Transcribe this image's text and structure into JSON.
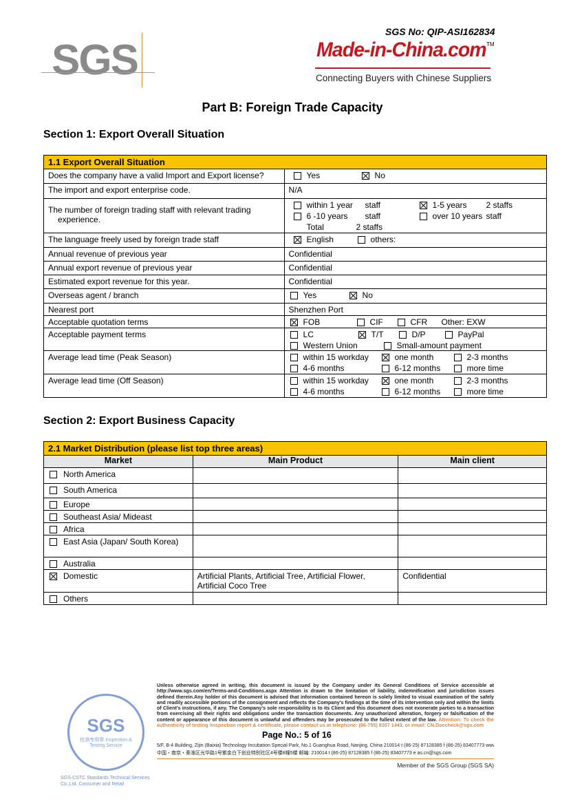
{
  "header": {
    "sgs_logo": "SGS",
    "sgs_no": "SGS No: QIP-ASI162834",
    "mic_logo": "Made-in-China.com",
    "mic_tm": "TM",
    "tagline": "Connecting Buyers with Chinese Suppliers"
  },
  "title": "Part B: Foreign Trade Capacity",
  "section1": {
    "title": "Section 1: Export Overall Situation",
    "table_title": "1.1 Export Overall Situation",
    "rows": [
      {
        "label": "Does the company have a valid Import and Export license?",
        "opts": [
          {
            "t": "Yes",
            "c": false
          },
          {
            "t": "No",
            "c": true
          }
        ]
      },
      {
        "label": "The import and export enterprise code.",
        "value": "N/A"
      },
      {
        "label": "The number of foreign trading staff with relevant trading experience.",
        "opts": [
          {
            "t": "within 1 year",
            "s": "staff",
            "c": false
          },
          {
            "t": "1-5 years",
            "s": "2 staffs",
            "c": true
          },
          {
            "t": "6 -10 years",
            "s": "staff",
            "c": false
          },
          {
            "t": "over 10 years",
            "s": "staff",
            "c": false
          }
        ],
        "total_label": "Total",
        "total": "2 staffs"
      },
      {
        "label": "The language freely used by foreign trade staff",
        "opts": [
          {
            "t": "English",
            "c": true
          },
          {
            "t": "others:",
            "c": false
          }
        ]
      },
      {
        "label": "Annual revenue of previous year",
        "value": "Confidential"
      },
      {
        "label": "Annual export revenue of previous year",
        "value": "Confidential"
      },
      {
        "label": "Estimated export revenue for this year.",
        "value": "Confidential"
      },
      {
        "label": "Overseas agent / branch",
        "opts": [
          {
            "t": "Yes",
            "c": false
          },
          {
            "t": "No",
            "c": true
          }
        ]
      },
      {
        "label": "Nearest port",
        "value": "Shenzhen Port"
      },
      {
        "label": "Acceptable quotation terms",
        "opts": [
          {
            "t": "FOB",
            "c": true
          },
          {
            "t": "CIF",
            "c": false
          },
          {
            "t": "CFR",
            "c": false
          }
        ],
        "other": "Other: EXW"
      },
      {
        "label": "Acceptable payment terms",
        "opts": [
          {
            "t": "LC",
            "c": false
          },
          {
            "t": "T/T",
            "c": true
          },
          {
            "t": "D/P",
            "c": false
          },
          {
            "t": "PayPal",
            "c": false
          },
          {
            "t": "Western Union",
            "c": false
          },
          {
            "t": "Small-amount payment",
            "c": false
          }
        ]
      },
      {
        "label": "Average lead time (Peak Season)",
        "opts": [
          {
            "t": "within 15 workday",
            "c": false
          },
          {
            "t": "one month",
            "c": true
          },
          {
            "t": "2-3 months",
            "c": false
          },
          {
            "t": "4-6 months",
            "c": false
          },
          {
            "t": "6-12 months",
            "c": false
          },
          {
            "t": "more time",
            "c": false
          }
        ]
      },
      {
        "label": "Average lead time (Off Season)",
        "opts": [
          {
            "t": "within 15 workday",
            "c": false
          },
          {
            "t": "one month",
            "c": true
          },
          {
            "t": "2-3 months",
            "c": false
          },
          {
            "t": "4-6 months",
            "c": false
          },
          {
            "t": "6-12 months",
            "c": false
          },
          {
            "t": "more time",
            "c": false
          }
        ]
      }
    ]
  },
  "section2": {
    "title": "Section 2: Export Business Capacity",
    "table_title": "2.1 Market Distribution (please list top three areas)",
    "columns": [
      "Market",
      "Main Product",
      "Main client"
    ],
    "rows": [
      {
        "market": "North America",
        "c": false,
        "product": "",
        "client": ""
      },
      {
        "market": "South America",
        "c": false,
        "product": "",
        "client": ""
      },
      {
        "market": "Europe",
        "c": false,
        "product": "",
        "client": ""
      },
      {
        "market": "Southeast Asia/ Mideast",
        "c": false,
        "product": "",
        "client": ""
      },
      {
        "market": "Africa",
        "c": false,
        "product": "",
        "client": ""
      },
      {
        "market": "East Asia (Japan/ South Korea)",
        "c": false,
        "product": "",
        "client": ""
      },
      {
        "market": "Australia",
        "c": false,
        "product": "",
        "client": ""
      },
      {
        "market": "Domestic",
        "c": true,
        "product": "Artificial Plants, Artificial Tree, Artificial Flower, Artificial Coco Tree",
        "client": "Confidential"
      },
      {
        "market": "Others",
        "c": false,
        "product": "",
        "client": ""
      }
    ]
  },
  "footer": {
    "disclaimer": "Unless otherwise agreed in writing, this document is issued by the Company under its General Conditions of Service accessible at http://www.sgs.com/en/Terms-and-Conditions.aspx Attention is drawn to the limitation of liability, indemnification and jurisdiction issues defined therein.Any holder of this document is advised that information contained hereon is solely limited to visual examination of the safely and readily accessible portions of the consignment and reflects the Company's findings at the time of its intervention only and within the limits of Client's instructions, if any. The Company's sole responsibility is to its Client and this document does not exonerate parties to a transaction from exercising all their rights and obligations under the transaction documents. Any unauthorized alteration, forgery or falsification of the content or appearance of this document is unlawful and offenders may be prosecuted to the fullest extent of the law.",
    "attention": "Attention: To check the authenticity of testing /inspection report & certificate, please contact us at telephone: (86-755) 8307 1443, or email: CN.Doccheck@sgs.com",
    "page": "Page No.: 5 of 16",
    "addr_en": "5/F, B-4 Building, Zijin (Baixia) Technology Incubation Special Park, No.1 Guanghua Road, Nanjing, China  210014    t (86-25) 87128385    f (86-25) 83407773    www.sgsgroup.com.cn",
    "addr_cn": "中国・南京・秦淮区光华路1号紫金白下创业特别社区4号楼8幢5楼 邮编: 210014    t (86-25) 87128385    f (86-25) 83407773    e  as.cn@sgs.com",
    "member": "Member of the SGS Group (SGS SA)",
    "stamp_text": "SGS",
    "stamp_sub": "检测专用章 Inspection & Testing Service",
    "stamp_caption": "SGS-CSTC Standards Technical Services Co.,Ltd. Consumer and Retail"
  }
}
